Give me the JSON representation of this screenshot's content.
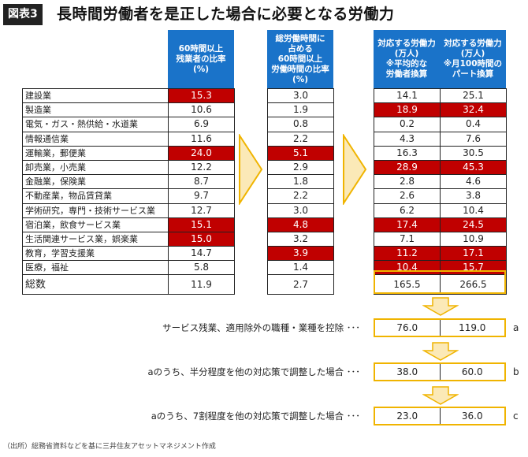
{
  "figure_label": "図表3",
  "title": "長時間労働者を是正した場合に必要となる労働力",
  "headers": {
    "col1": "60時間以上\n残業者の比率\n(%)",
    "col2": "総労働時間に\n占める\n60時間以上\n労働時間の比率\n(%)",
    "col3": "対応する労働力\n(万人)\n※平均的な\n労働者換算",
    "col4": "対応する労働力\n(万人)\n※月100時間の\nパート換算"
  },
  "rows": [
    {
      "industry": "建設業",
      "overtime_ratio": "15.3",
      "hours_ratio": "3.0",
      "workforce_avg": "14.1",
      "workforce_part": "25.1",
      "hl": [
        true,
        false,
        false,
        false
      ]
    },
    {
      "industry": "製造業",
      "overtime_ratio": "10.6",
      "hours_ratio": "1.9",
      "workforce_avg": "18.9",
      "workforce_part": "32.4",
      "hl": [
        false,
        false,
        true,
        true
      ]
    },
    {
      "industry": "電気・ガス・熱供給・水道業",
      "overtime_ratio": "6.9",
      "hours_ratio": "0.8",
      "workforce_avg": "0.2",
      "workforce_part": "0.4",
      "hl": [
        false,
        false,
        false,
        false
      ]
    },
    {
      "industry": "情報通信業",
      "overtime_ratio": "11.6",
      "hours_ratio": "2.2",
      "workforce_avg": "4.3",
      "workforce_part": "7.6",
      "hl": [
        false,
        false,
        false,
        false
      ]
    },
    {
      "industry": "運輸業，郵便業",
      "overtime_ratio": "24.0",
      "hours_ratio": "5.1",
      "workforce_avg": "16.3",
      "workforce_part": "30.5",
      "hl": [
        true,
        true,
        false,
        false
      ]
    },
    {
      "industry": "卸売業，小売業",
      "overtime_ratio": "12.2",
      "hours_ratio": "2.9",
      "workforce_avg": "28.9",
      "workforce_part": "45.3",
      "hl": [
        false,
        false,
        true,
        true
      ]
    },
    {
      "industry": "金融業，保険業",
      "overtime_ratio": "8.7",
      "hours_ratio": "1.8",
      "workforce_avg": "2.8",
      "workforce_part": "4.6",
      "hl": [
        false,
        false,
        false,
        false
      ]
    },
    {
      "industry": "不動産業，物品賃貸業",
      "overtime_ratio": "9.7",
      "hours_ratio": "2.2",
      "workforce_avg": "2.6",
      "workforce_part": "3.8",
      "hl": [
        false,
        false,
        false,
        false
      ]
    },
    {
      "industry": "学術研究，専門・技術サービス業",
      "overtime_ratio": "12.7",
      "hours_ratio": "3.0",
      "workforce_avg": "6.2",
      "workforce_part": "10.4",
      "hl": [
        false,
        false,
        false,
        false
      ]
    },
    {
      "industry": "宿泊業，飲食サービス業",
      "overtime_ratio": "15.1",
      "hours_ratio": "4.8",
      "workforce_avg": "17.4",
      "workforce_part": "24.5",
      "hl": [
        true,
        true,
        true,
        true
      ]
    },
    {
      "industry": "生活関連サービス業，娯楽業",
      "overtime_ratio": "15.0",
      "hours_ratio": "3.2",
      "workforce_avg": "7.1",
      "workforce_part": "10.9",
      "hl": [
        true,
        false,
        false,
        false
      ]
    },
    {
      "industry": "教育，学習支援業",
      "overtime_ratio": "14.7",
      "hours_ratio": "3.9",
      "workforce_avg": "11.2",
      "workforce_part": "17.1",
      "hl": [
        false,
        true,
        true,
        true
      ]
    },
    {
      "industry": "医療，福祉",
      "overtime_ratio": "5.8",
      "hours_ratio": "1.4",
      "workforce_avg": "10.4",
      "workforce_part": "15.7",
      "hl": [
        false,
        false,
        true,
        true
      ]
    }
  ],
  "total": {
    "industry": "総数",
    "overtime_ratio": "11.9",
    "hours_ratio": "2.7",
    "workforce_avg": "165.5",
    "workforce_part": "266.5"
  },
  "calc_rows": [
    {
      "label": "サービス残業、適用除外の職種・業種を控除 ･･･",
      "avg": "76.0",
      "part": "119.0",
      "letter": "a"
    },
    {
      "label": "aのうち、半分程度を他の対応策で調整した場合 ･･･",
      "avg": "38.0",
      "part": "60.0",
      "letter": "b"
    },
    {
      "label": "aのうち、7割程度を他の対応策で調整した場合 ･･･",
      "avg": "23.0",
      "part": "36.0",
      "letter": "c"
    }
  ],
  "source": "（出所）総務省資料などを基に三井住友アセットマネジメント作成",
  "colors": {
    "header_blue": "#1a73c9",
    "highlight_red": "#c00000",
    "box_yellow": "#f0b400",
    "arrow_fill": "#fbe9b7"
  }
}
